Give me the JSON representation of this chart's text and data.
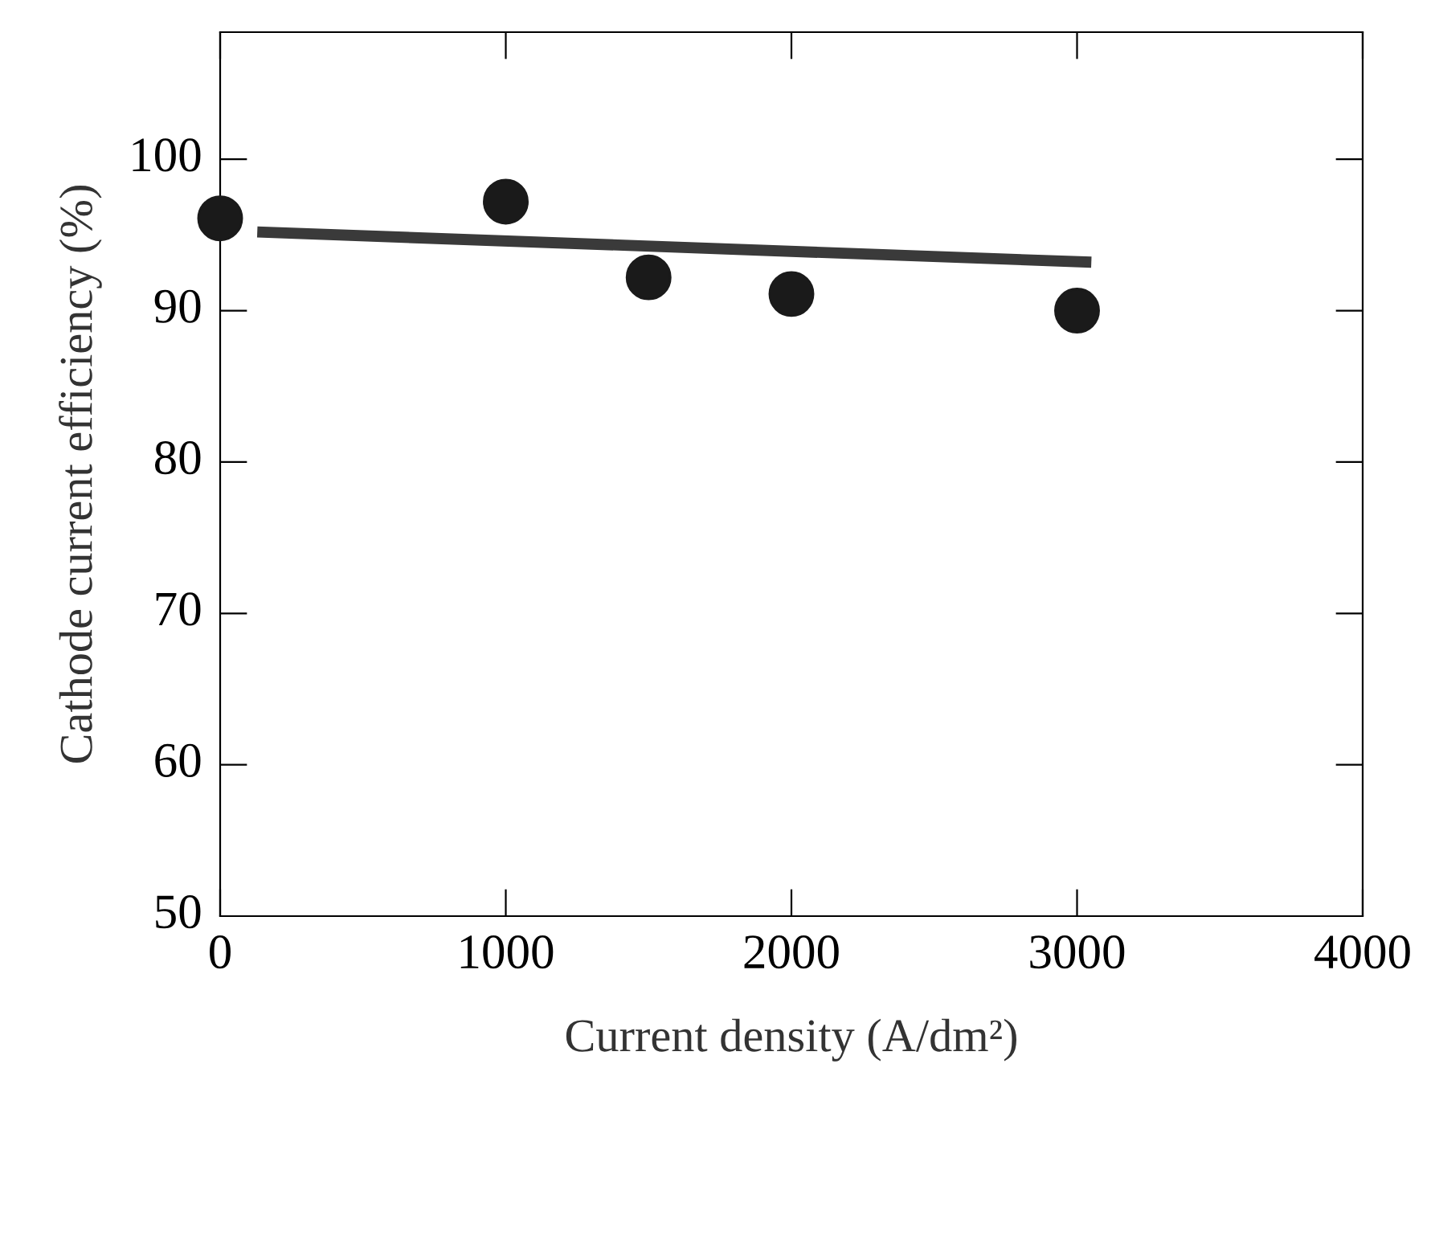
{
  "chart_data": {
    "type": "scatter",
    "xlabel": "Current density (A/dm²)",
    "ylabel": "Cathode current efficiency (%)",
    "series": [
      {
        "color": "#1a1a1a",
        "x": [
          0,
          1000,
          1500,
          2000,
          3000
        ],
        "values": [
          96.1,
          97.2,
          92.2,
          91.1,
          90.0
        ],
        "marker": "circle"
      },
      {
        "type": "line",
        "color": "#3a3a3a",
        "x": [
          130,
          3050
        ],
        "values": [
          95.2,
          93.2
        ],
        "line_style": "solid"
      }
    ],
    "xlim": [
      0,
      4000
    ],
    "xticks": [
      0,
      1000,
      2000,
      3000,
      4000
    ],
    "ylim": [
      50,
      108.4
    ],
    "yticks": [
      50,
      60,
      70,
      80,
      90,
      100
    ],
    "grid": false,
    "legend": false
  }
}
